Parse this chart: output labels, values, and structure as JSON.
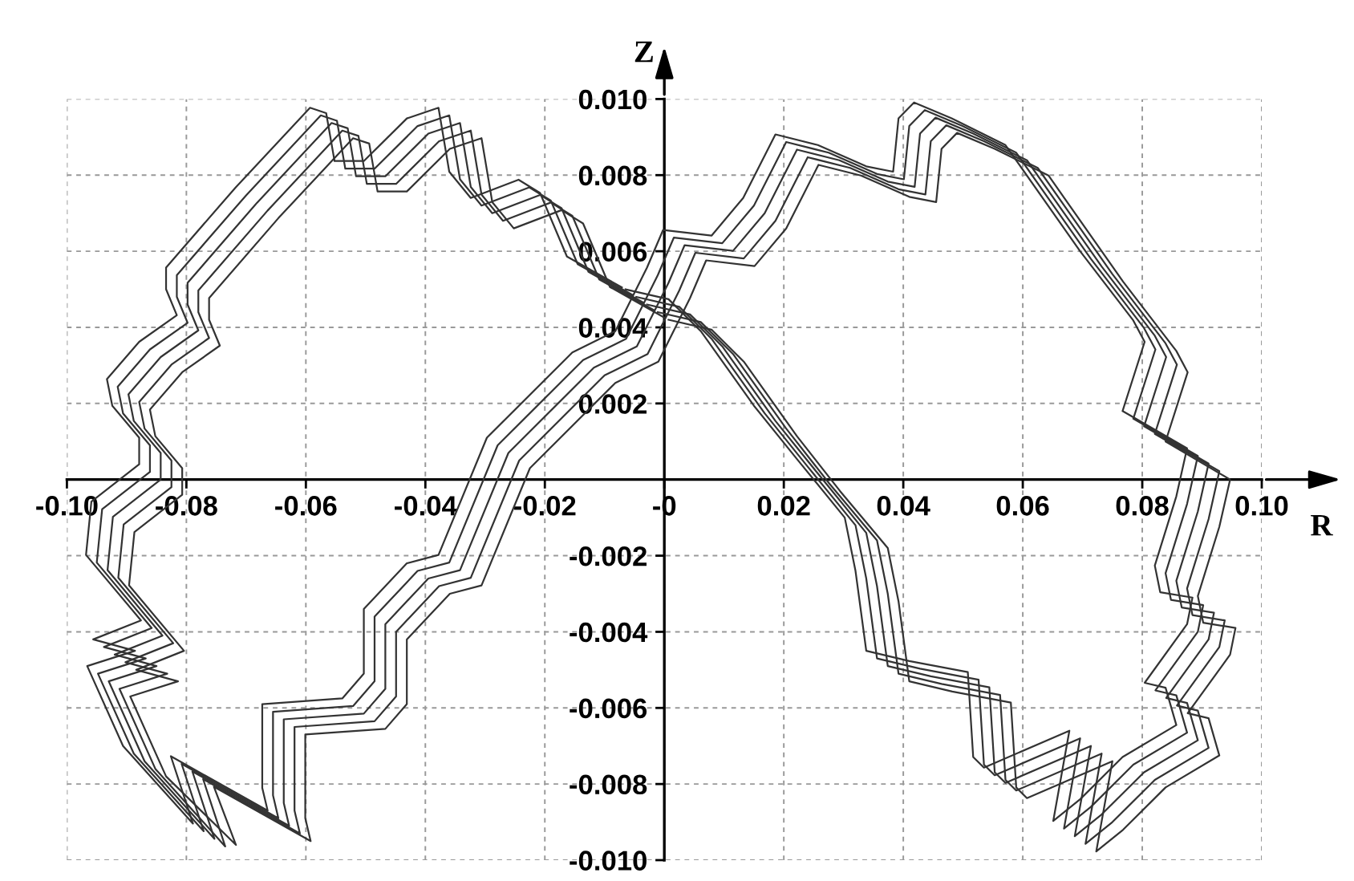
{
  "chart_data": {
    "type": "line",
    "xlabel": "R",
    "ylabel": "Z",
    "xlim": [
      -0.1,
      0.1
    ],
    "ylim": [
      -0.01,
      0.01
    ],
    "xticks": [
      {
        "value": -0.1,
        "label": "-0.10"
      },
      -0.08,
      -0.06,
      -0.04,
      -0.02,
      {
        "value": 0,
        "label": "-0"
      },
      0.02,
      0.04,
      0.06,
      0.08,
      {
        "value": 0.1,
        "label": "0.10"
      }
    ],
    "yticks": [
      {
        "value": -0.01,
        "label": "-0.010"
      },
      -0.008,
      -0.006,
      -0.004,
      -0.002,
      0.002,
      0.004,
      0.006,
      0.008,
      {
        "value": 0.01,
        "label": "0.010"
      }
    ],
    "grid": true,
    "series": [
      {
        "color": "#333333",
        "x": [
          -0.0065,
          0.0007,
          0.0061,
          0.015,
          0.0222,
          0.0302,
          0.032,
          0.0338,
          0.041,
          0.0508,
          0.0517,
          0.0535,
          0.0678,
          0.0651,
          0.0696,
          0.0767,
          0.0857,
          0.0839,
          0.0804,
          0.0875,
          0.0884,
          0.083,
          0.0821,
          0.0857,
          0.0875,
          0.0767,
          0.0804,
          0.0785,
          0.0696,
          0.0571,
          0.0481,
          0.0418,
          0.0392,
          0.0383,
          0.0338,
          0.0257,
          0.0186,
          0.0132,
          0.0079,
          -0.0002,
          -0.0029,
          -0.0082,
          -0.0154,
          -0.0297,
          -0.0378,
          -0.0431,
          -0.0503,
          -0.0503,
          -0.0539,
          -0.0673,
          -0.0673,
          -0.0664,
          -0.0826,
          -0.0789,
          -0.0906,
          -0.0966,
          -0.0886,
          -0.0956,
          -0.0876,
          -0.0968,
          -0.0959,
          -0.0879,
          -0.0879,
          -0.0924,
          -0.0933,
          -0.0879,
          -0.0816,
          -0.0834,
          -0.0834,
          -0.0718,
          -0.0593,
          -0.0566,
          -0.0552,
          -0.0503,
          -0.0431,
          -0.0378,
          -0.036,
          -0.0324,
          -0.0244,
          -0.0208,
          -0.0163,
          -0.0071
        ],
        "values": [
          0.005,
          0.00474,
          0.0039,
          0.00194,
          0.00054,
          -0.001,
          -0.0024,
          -0.0045,
          -0.00477,
          -0.00506,
          -0.00729,
          -0.00757,
          -0.0066,
          -0.00897,
          -0.0084,
          -0.00729,
          -0.00645,
          -0.00547,
          -0.00534,
          -0.0038,
          -0.0031,
          -0.00296,
          -0.00226,
          -0.00044,
          0.00082,
          0.0018,
          0.00362,
          0.00418,
          0.006,
          0.00879,
          0.00949,
          0.00991,
          0.00949,
          0.00809,
          0.00823,
          0.00879,
          0.00907,
          0.0074,
          0.00641,
          0.00656,
          0.00557,
          0.0039,
          0.00334,
          0.0011,
          -0.00198,
          -0.0022,
          -0.0034,
          -0.0051,
          -0.00575,
          -0.0059,
          -0.0081,
          -0.0087,
          -0.00727,
          -0.00904,
          -0.007,
          -0.0049,
          -0.0045,
          -0.0042,
          -0.0037,
          -0.00198,
          -0.00058,
          0.0004,
          0.0011,
          0.00194,
          0.00264,
          0.00362,
          0.00432,
          0.005,
          0.00557,
          0.00767,
          0.00977,
          0.00963,
          0.00837,
          0.00837,
          0.00949,
          0.00977,
          0.00809,
          0.0074,
          0.00788,
          0.00753,
          0.00586,
          0.00505
        ]
      },
      {
        "color": "#333333",
        "x": [
          -0.0047,
          0.0025,
          0.0079,
          0.0168,
          0.024,
          0.032,
          0.0338,
          0.0356,
          0.0428,
          0.0526,
          0.0535,
          0.0553,
          0.0696,
          0.0669,
          0.0714,
          0.0785,
          0.0875,
          0.0857,
          0.0822,
          0.0893,
          0.0902,
          0.0848,
          0.0839,
          0.0875,
          0.0893,
          0.0785,
          0.0822,
          0.0803,
          0.0714,
          0.0589,
          0.0499,
          0.0436,
          0.041,
          0.0401,
          0.0356,
          0.0275,
          0.0204,
          0.015,
          0.0097,
          0.0016,
          -0.0011,
          -0.0064,
          -0.0136,
          -0.0279,
          -0.036,
          -0.0413,
          -0.0485,
          -0.0485,
          -0.0521,
          -0.0655,
          -0.0655,
          -0.0646,
          -0.0808,
          -0.0771,
          -0.0888,
          -0.0948,
          -0.0868,
          -0.0938,
          -0.0858,
          -0.095,
          -0.0941,
          -0.0861,
          -0.0861,
          -0.0906,
          -0.0915,
          -0.0861,
          -0.0798,
          -0.0816,
          -0.0816,
          -0.07,
          -0.0575,
          -0.0548,
          -0.0534,
          -0.0485,
          -0.0413,
          -0.036,
          -0.0342,
          -0.0306,
          -0.0226,
          -0.019,
          -0.0145,
          -0.0053
        ],
        "values": [
          0.0048,
          0.00454,
          0.0037,
          0.00174,
          0.00034,
          -0.0012,
          -0.0026,
          -0.0047,
          -0.00497,
          -0.00526,
          -0.00749,
          -0.00777,
          -0.0068,
          -0.00917,
          -0.0086,
          -0.00749,
          -0.00665,
          -0.00567,
          -0.00554,
          -0.004,
          -0.0033,
          -0.00316,
          -0.00246,
          -0.00064,
          0.00062,
          0.0016,
          0.00342,
          0.00398,
          0.0058,
          0.00859,
          0.00929,
          0.00971,
          0.00929,
          0.00789,
          0.00803,
          0.00859,
          0.00887,
          0.0072,
          0.00621,
          0.00636,
          0.00537,
          0.0037,
          0.00314,
          0.0009,
          -0.00218,
          -0.0024,
          -0.0036,
          -0.0053,
          -0.00595,
          -0.0061,
          -0.0083,
          -0.0089,
          -0.00747,
          -0.00924,
          -0.0072,
          -0.0051,
          -0.0047,
          -0.0044,
          -0.0039,
          -0.00218,
          -0.00078,
          0.0002,
          0.0009,
          0.00174,
          0.00244,
          0.00342,
          0.00412,
          0.0048,
          0.00537,
          0.00747,
          0.00957,
          0.00943,
          0.00817,
          0.00817,
          0.00929,
          0.00957,
          0.00789,
          0.0072,
          0.00768,
          0.00733,
          0.00566,
          0.00485
        ]
      },
      {
        "color": "#333333",
        "x": [
          -0.0029,
          0.0043,
          0.0097,
          0.0186,
          0.0258,
          0.0338,
          0.0356,
          0.0374,
          0.0446,
          0.0544,
          0.0553,
          0.0571,
          0.0714,
          0.0687,
          0.0732,
          0.0803,
          0.0893,
          0.0875,
          0.084,
          0.0911,
          0.092,
          0.0866,
          0.0857,
          0.0893,
          0.0911,
          0.0803,
          0.084,
          0.0821,
          0.0732,
          0.0607,
          0.0517,
          0.0454,
          0.0428,
          0.0419,
          0.0374,
          0.0293,
          0.0222,
          0.0168,
          0.0115,
          0.0034,
          0.0007,
          -0.0046,
          -0.0118,
          -0.0261,
          -0.0342,
          -0.0395,
          -0.0467,
          -0.0467,
          -0.0503,
          -0.0637,
          -0.0637,
          -0.0628,
          -0.079,
          -0.0753,
          -0.087,
          -0.093,
          -0.085,
          -0.092,
          -0.084,
          -0.0932,
          -0.0923,
          -0.0843,
          -0.0843,
          -0.0888,
          -0.0897,
          -0.0843,
          -0.078,
          -0.0798,
          -0.0798,
          -0.0682,
          -0.0557,
          -0.053,
          -0.0516,
          -0.0467,
          -0.0395,
          -0.0342,
          -0.0324,
          -0.0288,
          -0.0208,
          -0.0172,
          -0.0127,
          -0.0035
        ],
        "values": [
          0.0046,
          0.00434,
          0.0035,
          0.00154,
          0.00014,
          -0.0014,
          -0.0028,
          -0.0049,
          -0.00517,
          -0.00546,
          -0.00769,
          -0.00797,
          -0.007,
          -0.00937,
          -0.0088,
          -0.00769,
          -0.00685,
          -0.00587,
          -0.00574,
          -0.0042,
          -0.0035,
          -0.00336,
          -0.00266,
          -0.00084,
          0.00042,
          0.0014,
          0.00322,
          0.00378,
          0.0056,
          0.00839,
          0.00909,
          0.00951,
          0.00909,
          0.00769,
          0.00783,
          0.00839,
          0.00867,
          0.007,
          0.00601,
          0.00616,
          0.00517,
          0.0035,
          0.00294,
          0.0007,
          -0.00238,
          -0.0026,
          -0.0038,
          -0.0055,
          -0.00615,
          -0.0063,
          -0.0085,
          -0.0091,
          -0.00767,
          -0.00944,
          -0.0074,
          -0.0053,
          -0.0049,
          -0.0046,
          -0.0041,
          -0.00238,
          -0.00098,
          0.0,
          0.0007,
          0.00154,
          0.00224,
          0.00322,
          0.00392,
          0.0046,
          0.00517,
          0.00727,
          0.00937,
          0.00923,
          0.00797,
          0.00797,
          0.00909,
          0.00937,
          0.00769,
          0.007,
          0.00748,
          0.00713,
          0.00546,
          0.00465
        ]
      },
      {
        "color": "#333333",
        "x": [
          -0.0011,
          0.0061,
          0.0115,
          0.0204,
          0.0276,
          0.0356,
          0.0374,
          0.0392,
          0.0464,
          0.0562,
          0.0571,
          0.0589,
          0.0732,
          0.0705,
          0.075,
          0.0821,
          0.0911,
          0.0893,
          0.0858,
          0.0929,
          0.0938,
          0.0884,
          0.0875,
          0.0911,
          0.0929,
          0.0821,
          0.0858,
          0.0839,
          0.075,
          0.0625,
          0.0535,
          0.0472,
          0.0446,
          0.0437,
          0.0392,
          0.0311,
          0.024,
          0.0186,
          0.0133,
          0.0052,
          0.0025,
          -0.0028,
          -0.01,
          -0.0243,
          -0.0324,
          -0.0377,
          -0.0449,
          -0.0449,
          -0.0485,
          -0.0619,
          -0.0619,
          -0.061,
          -0.0772,
          -0.0735,
          -0.0852,
          -0.0912,
          -0.0832,
          -0.0902,
          -0.0822,
          -0.0914,
          -0.0905,
          -0.0825,
          -0.0825,
          -0.087,
          -0.0879,
          -0.0825,
          -0.0762,
          -0.078,
          -0.078,
          -0.0664,
          -0.0539,
          -0.0512,
          -0.0498,
          -0.0449,
          -0.0377,
          -0.0324,
          -0.0306,
          -0.027,
          -0.019,
          -0.0154,
          -0.0109,
          -0.0017
        ],
        "values": [
          0.0044,
          0.00414,
          0.0033,
          0.00134,
          -0.0001,
          -0.0016,
          -0.003,
          -0.0051,
          -0.00537,
          -0.00566,
          -0.00789,
          -0.00817,
          -0.0072,
          -0.00957,
          -0.009,
          -0.00789,
          -0.00705,
          -0.00607,
          -0.00594,
          -0.0044,
          -0.0037,
          -0.00356,
          -0.00286,
          -0.00104,
          0.00022,
          0.0012,
          0.00302,
          0.00358,
          0.0054,
          0.00819,
          0.00889,
          0.00931,
          0.00889,
          0.00749,
          0.00763,
          0.00819,
          0.00847,
          0.0068,
          0.00581,
          0.00596,
          0.00497,
          0.0033,
          0.00274,
          0.0005,
          -0.00258,
          -0.0028,
          -0.004,
          -0.0057,
          -0.00635,
          -0.0065,
          -0.0087,
          -0.0093,
          -0.00787,
          -0.00964,
          -0.0076,
          -0.0055,
          -0.0051,
          -0.0048,
          -0.0043,
          -0.00258,
          -0.00118,
          -0.0002,
          0.0005,
          0.00134,
          0.00204,
          0.00302,
          0.00372,
          0.0044,
          0.00497,
          0.00707,
          0.00917,
          0.00903,
          0.00777,
          0.00777,
          0.00889,
          0.00917,
          0.00749,
          0.0068,
          0.00728,
          0.00693,
          0.00526,
          0.00445
        ]
      },
      {
        "color": "#333333",
        "x": [
          0.0007,
          0.0079,
          0.0133,
          0.0222,
          0.0294,
          0.0374,
          0.0392,
          0.041,
          0.0482,
          0.058,
          0.0589,
          0.0607,
          0.075,
          0.0723,
          0.0768,
          0.0839,
          0.0929,
          0.0911,
          0.0876,
          0.0947,
          0.0956,
          0.0902,
          0.0893,
          0.0929,
          0.0947,
          0.0839,
          0.0876,
          0.0857,
          0.0768,
          0.0643,
          0.0553,
          0.049,
          0.0464,
          0.0455,
          0.041,
          0.0329,
          0.0258,
          0.0204,
          0.0151,
          0.007,
          0.0043,
          -0.001,
          -0.0082,
          -0.0225,
          -0.0306,
          -0.0359,
          -0.0431,
          -0.0431,
          -0.0467,
          -0.0601,
          -0.0601,
          -0.0592,
          -0.0754,
          -0.0717,
          -0.0834,
          -0.0894,
          -0.0814,
          -0.0884,
          -0.0804,
          -0.0896,
          -0.0887,
          -0.0807,
          -0.0807,
          -0.0852,
          -0.0861,
          -0.0807,
          -0.0744,
          -0.0762,
          -0.0762,
          -0.0646,
          -0.0521,
          -0.0494,
          -0.048,
          -0.0431,
          -0.0359,
          -0.0306,
          -0.0288,
          -0.0252,
          -0.0172,
          -0.0136,
          -0.0091,
          0.0001
        ],
        "values": [
          0.0042,
          0.00394,
          0.0031,
          0.00114,
          -0.0003,
          -0.0018,
          -0.0032,
          -0.0053,
          -0.00557,
          -0.00586,
          -0.00809,
          -0.00837,
          -0.0074,
          -0.00977,
          -0.0092,
          -0.00809,
          -0.00725,
          -0.00627,
          -0.00614,
          -0.0046,
          -0.0039,
          -0.00376,
          -0.00306,
          -0.00124,
          0.0,
          0.001,
          0.00282,
          0.00338,
          0.0052,
          0.00799,
          0.00869,
          0.00911,
          0.00869,
          0.00729,
          0.00743,
          0.00799,
          0.00827,
          0.0066,
          0.00561,
          0.00576,
          0.00477,
          0.0031,
          0.00254,
          0.0003,
          -0.00278,
          -0.003,
          -0.0042,
          -0.0059,
          -0.00655,
          -0.0067,
          -0.0089,
          -0.0095,
          -0.00807,
          -0.0096,
          -0.0078,
          -0.0057,
          -0.0053,
          -0.005,
          -0.0045,
          -0.00278,
          -0.00138,
          -0.0004,
          0.0003,
          0.00114,
          0.00184,
          0.00282,
          0.00352,
          0.0042,
          0.00477,
          0.00687,
          0.00897,
          0.00883,
          0.00757,
          0.00757,
          0.00869,
          0.00897,
          0.00729,
          0.0066,
          0.00708,
          0.00673,
          0.00506,
          0.00425
        ]
      }
    ]
  }
}
